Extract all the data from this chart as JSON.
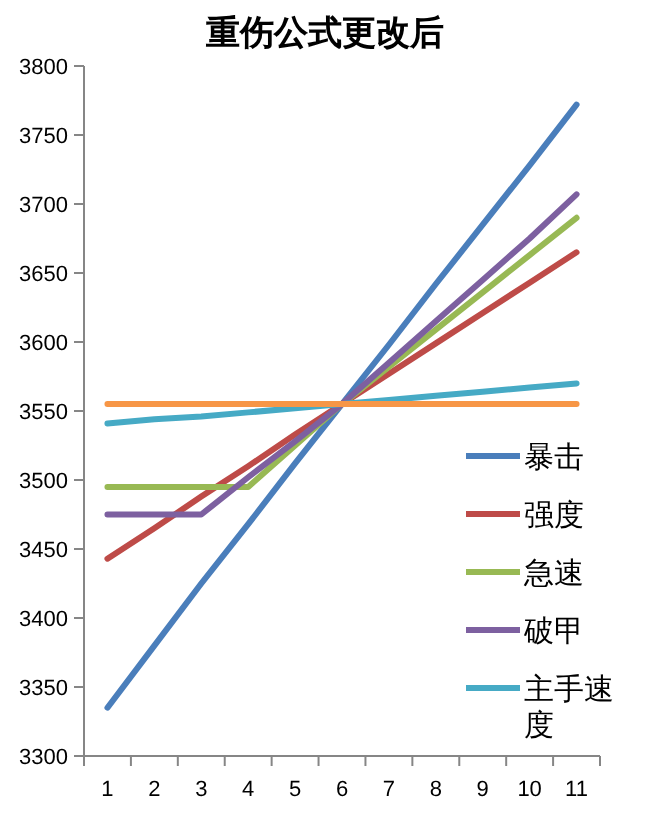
{
  "chart_data": {
    "type": "line",
    "title": "重伤公式更改后",
    "categories": [
      "1",
      "2",
      "3",
      "4",
      "5",
      "6",
      "7",
      "8",
      "9",
      "10",
      "11"
    ],
    "ylim": [
      3300,
      3800
    ],
    "yticks": [
      3300,
      3350,
      3400,
      3450,
      3500,
      3550,
      3600,
      3650,
      3700,
      3750,
      3800
    ],
    "grid": false,
    "legend": "right",
    "marker": "none",
    "line_style": "solid",
    "series": [
      {
        "name": "暴击",
        "color": "#4a7ebb",
        "values": [
          3335,
          3380,
          3425,
          3468,
          3512,
          3555,
          3598,
          3642,
          3685,
          3728,
          3772
        ]
      },
      {
        "name": "强度",
        "color": "#be4b48",
        "values": [
          3443,
          3465,
          3488,
          3510,
          3533,
          3555,
          3577,
          3599,
          3621,
          3643,
          3665
        ]
      },
      {
        "name": "急速",
        "color": "#98b954",
        "values": [
          3495,
          3495,
          3495,
          3495,
          3525,
          3555,
          3582,
          3609,
          3636,
          3663,
          3690
        ]
      },
      {
        "name": "破甲",
        "color": "#7d60a0",
        "values": [
          3475,
          3475,
          3475,
          3502,
          3528,
          3555,
          3585,
          3615,
          3645,
          3675,
          3707
        ]
      },
      {
        "name": "主手速度",
        "color": "#46aac5",
        "values": [
          3541,
          3544,
          3546,
          3549,
          3552,
          3555,
          3558,
          3561,
          3564,
          3567,
          3570
        ]
      },
      {
        "color": "#f79646",
        "values": [
          3555,
          3555,
          3555,
          3555,
          3555,
          3555,
          3555,
          3555,
          3555,
          3555,
          3555
        ]
      }
    ]
  }
}
